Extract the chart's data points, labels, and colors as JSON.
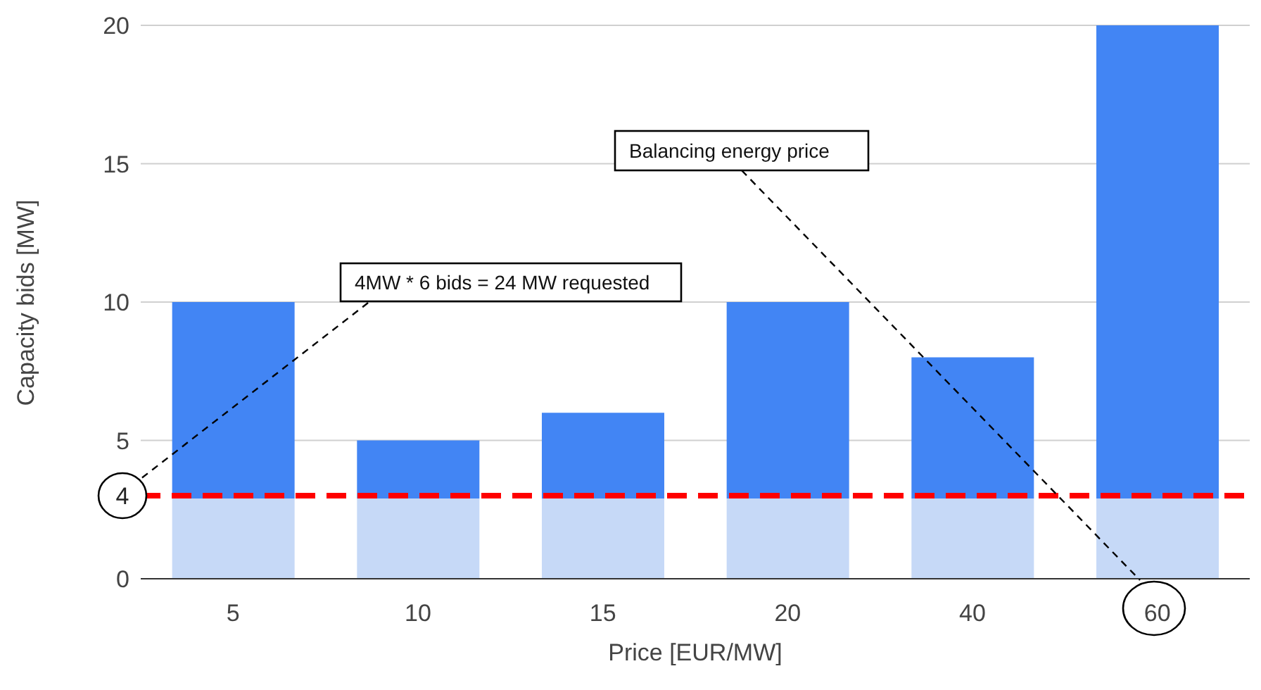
{
  "chart_data": {
    "type": "bar",
    "stacked": true,
    "xlabel": "Price [EUR/MW]",
    "ylabel": "Capacity bids [MW]",
    "categories": [
      "5",
      "10",
      "15",
      "20",
      "40",
      "60"
    ],
    "series": [
      {
        "color": "#c6d9f7",
        "values": [
          2.9,
          2.9,
          2.9,
          2.9,
          2.9,
          2.9
        ]
      },
      {
        "color": "#4285f4",
        "values": [
          7.1,
          2.1,
          3.1,
          7.1,
          5.1,
          17.1
        ]
      }
    ],
    "ylim": [
      0,
      20
    ],
    "yticks": [
      0,
      5,
      10,
      15,
      20
    ],
    "grid": "y",
    "legend": false,
    "ref_lines": [
      {
        "axis": "y",
        "value": 3,
        "color": "#ff0000",
        "line_style": "dashed"
      }
    ],
    "annotations": [
      "4MW * 6 bids = 24 MW requested",
      "Balancing energy price",
      "4"
    ]
  }
}
